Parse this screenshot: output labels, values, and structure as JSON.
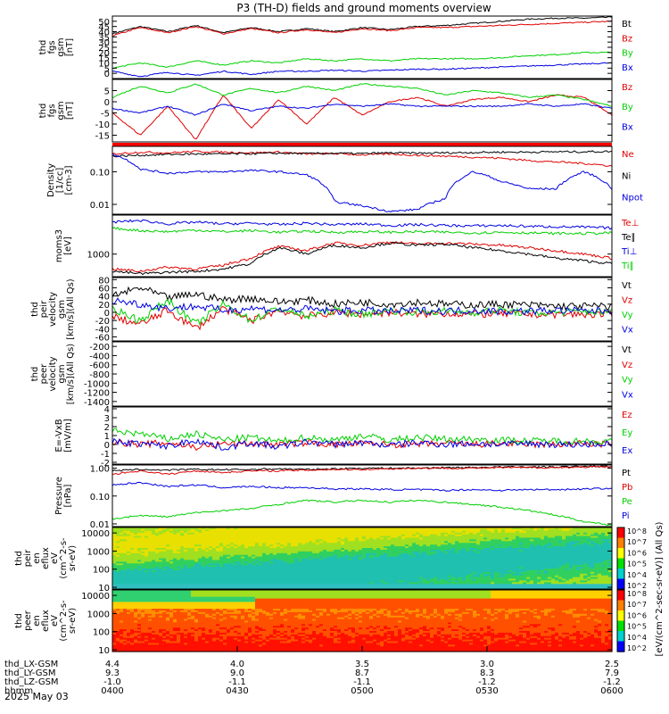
{
  "title": "P3 (TH-D) fields and ground moments overview",
  "date_label": "2025 May 03",
  "colorbar_label": "[eV/(cm^2-sec-sr-eV)] (All Qs)",
  "colors": {
    "black": "#000000",
    "red": "#e00000",
    "green": "#00d000",
    "blue": "#0000e0"
  },
  "chart_data": [
    {
      "type": "line",
      "ylabel": [
        "thd",
        "fgs",
        "gsm",
        "[nT]"
      ],
      "ylim": [
        -5,
        55
      ],
      "ticks": [
        0,
        5,
        10,
        15,
        20,
        25,
        30,
        35,
        40,
        45,
        50
      ],
      "series": [
        {
          "name": "Bt",
          "color": "black",
          "values": [
            38,
            45,
            40,
            46,
            39,
            44,
            40,
            43,
            40,
            44,
            42,
            45,
            46,
            48,
            50,
            52,
            53,
            53,
            54
          ]
        },
        {
          "name": "Bz",
          "color": "red",
          "values": [
            36,
            44,
            39,
            45,
            38,
            43,
            39,
            42,
            39,
            43,
            41,
            44,
            44,
            45,
            46,
            47,
            48,
            49,
            50
          ]
        },
        {
          "name": "By",
          "color": "green",
          "values": [
            5,
            10,
            6,
            12,
            8,
            12,
            10,
            14,
            12,
            14,
            12,
            14,
            14,
            14,
            15,
            17,
            18,
            20,
            20
          ]
        },
        {
          "name": "Bx",
          "color": "blue",
          "values": [
            2,
            -3,
            1,
            -2,
            2,
            -1,
            2,
            2,
            3,
            2,
            3,
            4,
            4,
            5,
            6,
            7,
            8,
            9,
            10
          ]
        }
      ]
    },
    {
      "type": "line",
      "ylabel": [
        "thd",
        "fgs",
        "gsm",
        "[nT]"
      ],
      "ylim": [
        -18,
        10
      ],
      "ticks": [
        5,
        0,
        -5,
        -10,
        -15
      ],
      "series": [
        {
          "name": "Bz",
          "color": "red",
          "values": [
            -5,
            -15,
            -2,
            -17,
            3,
            -12,
            1,
            -10,
            2,
            -6,
            0,
            2,
            -2,
            1,
            2,
            0,
            3,
            2,
            -6
          ]
        },
        {
          "name": "By",
          "color": "green",
          "values": [
            2,
            7,
            4,
            8,
            3,
            6,
            4,
            7,
            5,
            8,
            7,
            6,
            3,
            5,
            4,
            2,
            3,
            1,
            -2
          ]
        },
        {
          "name": "Bx",
          "color": "blue",
          "values": [
            -3,
            -5,
            -2,
            -6,
            -1,
            -4,
            -2,
            -3,
            -1,
            -2,
            -1,
            -2,
            -2,
            -2,
            -2,
            -1,
            -2,
            -1,
            -3
          ]
        }
      ]
    },
    {
      "type": "line",
      "scale": "log",
      "ylabel": [
        "Density",
        "[1/cc]",
        "[cm-3]"
      ],
      "ylim": [
        0.005,
        0.6
      ],
      "ticks": [
        0.01,
        0.1
      ],
      "series": [
        {
          "name": "Ne",
          "color": "red",
          "values": [
            0.35,
            0.4,
            0.38,
            0.42,
            0.4,
            0.38,
            0.4,
            0.35,
            0.36,
            0.33,
            0.35,
            0.32,
            0.3,
            0.28,
            0.26,
            0.22,
            0.2,
            0.18,
            0.15
          ]
        },
        {
          "name": "Ni",
          "color": "black",
          "values": [
            0.3,
            0.32,
            0.34,
            0.35,
            0.35,
            0.36,
            0.37,
            0.36,
            0.37,
            0.36,
            0.38,
            0.37,
            0.38,
            0.39,
            0.4,
            0.4,
            0.41,
            0.41,
            0.42
          ]
        },
        {
          "name": "Npot",
          "color": "blue",
          "values": [
            0.35,
            0.12,
            0.09,
            0.1,
            0.1,
            0.11,
            0.1,
            0.08,
            0.012,
            0.009,
            0.006,
            0.007,
            0.015,
            0.1,
            0.05,
            0.03,
            0.03,
            0.1,
            0.03
          ]
        }
      ]
    },
    {
      "type": "line",
      "scale": "log",
      "ylabel": [
        "moms3",
        "[eV]"
      ],
      "ylim": [
        300,
        8000
      ],
      "ticks": [
        1000
      ],
      "series": [
        {
          "name": "Te⊥",
          "color": "red",
          "values": [
            450,
            400,
            500,
            450,
            550,
            800,
            1500,
            1200,
            1800,
            1600,
            1900,
            1700,
            1800,
            1700,
            1600,
            1400,
            1200,
            1000,
            800
          ]
        },
        {
          "name": "Te∥",
          "color": "black",
          "values": [
            400,
            350,
            380,
            400,
            450,
            600,
            1400,
            1000,
            1600,
            1400,
            1800,
            1600,
            1700,
            1400,
            1200,
            1000,
            800,
            700,
            600
          ]
        },
        {
          "name": "Ti⊥",
          "color": "blue",
          "values": [
            5500,
            6000,
            5000,
            5500,
            5000,
            5200,
            4800,
            5200,
            4800,
            5000,
            4600,
            4800,
            4600,
            4500,
            4600,
            4400,
            4300,
            4200,
            4000
          ]
        },
        {
          "name": "Ti∥",
          "color": "green",
          "values": [
            4000,
            3500,
            3300,
            3600,
            3300,
            3500,
            3200,
            3400,
            3200,
            3300,
            3200,
            3300,
            3200,
            3100,
            3200,
            3100,
            3000,
            3000,
            3100
          ]
        }
      ]
    },
    {
      "type": "line",
      "ylabel": [
        "thd",
        "peir",
        "velocity",
        "gsm",
        "[km/s](All Qs)"
      ],
      "ylim": [
        -70,
        85
      ],
      "ticks": [
        80,
        60,
        40,
        20,
        0,
        -20,
        -40,
        -60
      ],
      "series": [
        {
          "name": "Vt",
          "color": "black",
          "values": [
            40,
            60,
            35,
            45,
            30,
            35,
            25,
            30,
            20,
            25,
            20,
            25,
            20,
            18,
            20,
            18,
            15,
            15,
            15
          ]
        },
        {
          "name": "Vz",
          "color": "red",
          "values": [
            -10,
            -30,
            5,
            -40,
            10,
            -20,
            5,
            -10,
            0,
            -5,
            0,
            -5,
            -2,
            -5,
            -3,
            -5,
            -5,
            -5,
            -5
          ]
        },
        {
          "name": "Vy",
          "color": "green",
          "values": [
            10,
            -20,
            30,
            -30,
            20,
            -20,
            10,
            -10,
            5,
            -5,
            5,
            0,
            3,
            0,
            5,
            -2,
            0,
            2,
            0
          ]
        },
        {
          "name": "Vx",
          "color": "blue",
          "values": [
            30,
            20,
            10,
            15,
            5,
            10,
            5,
            8,
            3,
            5,
            2,
            5,
            3,
            5,
            2,
            3,
            5,
            3,
            5
          ]
        }
      ]
    },
    {
      "type": "line",
      "ylabel": [
        "thd",
        "peer",
        "velocity",
        "gsm",
        "[km/s](All Qs)"
      ],
      "ylim": [
        -1500,
        -100
      ],
      "ticks": [
        -200,
        -400,
        -600,
        -800,
        -1000,
        -1200,
        -1400
      ],
      "series": [
        {
          "name": "Vt",
          "color": "black",
          "values": []
        },
        {
          "name": "Vz",
          "color": "red",
          "values": []
        },
        {
          "name": "Vy",
          "color": "green",
          "values": []
        },
        {
          "name": "Vx",
          "color": "blue",
          "values": []
        }
      ]
    },
    {
      "type": "line",
      "ylabel": [
        "E=-VxB",
        "[mV/m]"
      ],
      "ylim": [
        -2.2,
        4.2
      ],
      "ticks": [
        4,
        3,
        2,
        1,
        0,
        -1,
        -2
      ],
      "series": [
        {
          "name": "Ez",
          "color": "red",
          "values": [
            0.3,
            0.0,
            0.2,
            -0.3,
            0.1,
            0.1,
            0.0,
            0.2,
            0.0,
            0.1,
            0.0,
            0.0,
            0.1,
            0.0,
            0.1,
            0.0,
            0.0,
            0.1,
            0.0
          ]
        },
        {
          "name": "Ey",
          "color": "green",
          "values": [
            1.5,
            1.2,
            0.6,
            1.2,
            0.5,
            0.8,
            0.3,
            0.8,
            0.5,
            1.0,
            0.5,
            0.8,
            0.6,
            0.6,
            0.5,
            0.4,
            0.4,
            0.4,
            0.3
          ]
        },
        {
          "name": "Ex",
          "color": "blue",
          "values": [
            0.3,
            0.1,
            -0.2,
            0.5,
            -0.4,
            0.2,
            -0.3,
            0.3,
            0.0,
            0.2,
            -0.1,
            0.2,
            0.0,
            0.1,
            0.0,
            0.1,
            0.0,
            0.0,
            0.1
          ]
        }
      ]
    },
    {
      "type": "line",
      "scale": "log",
      "ylabel": [
        "Pressure",
        "[nPa]"
      ],
      "ylim": [
        0.008,
        1.3
      ],
      "ticks": [
        1.0,
        0.1,
        0.01
      ],
      "series": [
        {
          "name": "Pt",
          "color": "black",
          "values": [
            0.8,
            0.9,
            0.85,
            0.9,
            0.88,
            0.9,
            0.95,
            0.9,
            0.95,
            1.0,
            1.0,
            1.0,
            1.05,
            1.05,
            1.1,
            1.1,
            1.1,
            1.15,
            1.15
          ]
        },
        {
          "name": "Pb",
          "color": "red",
          "values": [
            0.6,
            0.8,
            0.6,
            0.8,
            0.7,
            0.8,
            0.8,
            0.85,
            0.9,
            0.9,
            0.95,
            1.0,
            1.0,
            1.0,
            1.05,
            1.05,
            1.05,
            1.1,
            1.1
          ]
        },
        {
          "name": "Pe",
          "color": "green",
          "values": [
            0.015,
            0.02,
            0.018,
            0.025,
            0.03,
            0.035,
            0.05,
            0.07,
            0.06,
            0.07,
            0.06,
            0.07,
            0.06,
            0.05,
            0.04,
            0.03,
            0.02,
            0.012,
            0.009
          ]
        },
        {
          "name": "Pi",
          "color": "blue",
          "values": [
            0.25,
            0.3,
            0.22,
            0.25,
            0.2,
            0.22,
            0.2,
            0.2,
            0.18,
            0.18,
            0.17,
            0.17,
            0.16,
            0.17,
            0.16,
            0.17,
            0.17,
            0.18,
            0.19
          ]
        }
      ]
    },
    {
      "type": "heatmap",
      "scale": "log",
      "ylabel": [
        "thd",
        "peir",
        "en",
        "eflux",
        "eV",
        "(cm^2-s-",
        "sr-eV)"
      ],
      "ylim": [
        8,
        20000
      ],
      "ticks": [
        10,
        100,
        1000,
        10000
      ]
    },
    {
      "type": "heatmap",
      "scale": "log",
      "ylabel": [
        "thd",
        "peer",
        "en",
        "eflux",
        "eV",
        "(cm^2-s-",
        "sr-eV)"
      ],
      "ylim": [
        8,
        20000
      ],
      "ticks": [
        10,
        100,
        1000,
        10000
      ]
    }
  ],
  "colorbar": {
    "min": 100,
    "max": 100000000,
    "ticks": [
      "10^2",
      "10^4",
      "10^5",
      "10^6",
      "10^7",
      "10^8"
    ]
  },
  "x_axis": {
    "rows": [
      {
        "label": "thd_LX-GSM",
        "values": [
          "4.4",
          "4.0",
          "3.5",
          "3.0",
          "2.5"
        ]
      },
      {
        "label": "thd_LY-GSM",
        "values": [
          "9.3",
          "9.0",
          "8.7",
          "8.3",
          "7.9"
        ]
      },
      {
        "label": "thd_LZ-GSM",
        "values": [
          "-1.0",
          "-1.1",
          "-1.1",
          "-1.2",
          "-1.2"
        ]
      },
      {
        "label": "hhmm",
        "values": [
          "0400",
          "0430",
          "0500",
          "0530",
          "0600"
        ]
      }
    ]
  }
}
